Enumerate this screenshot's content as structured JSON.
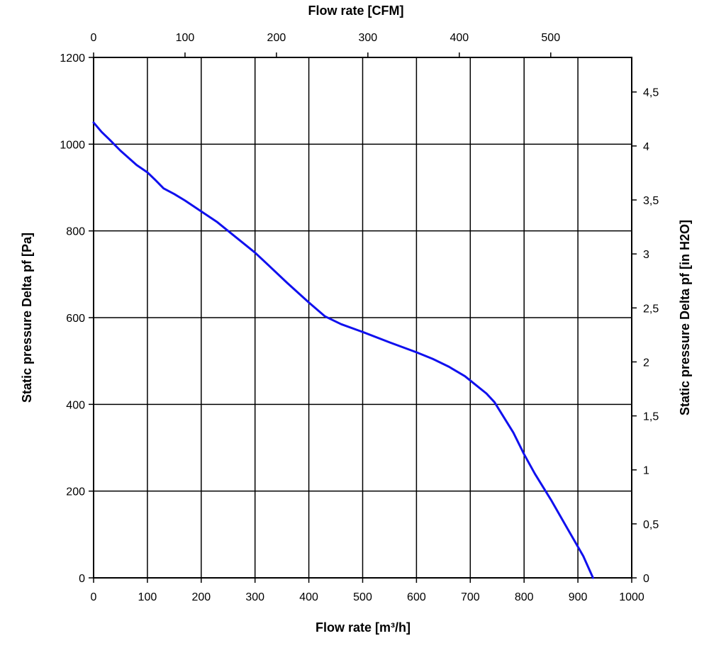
{
  "chart_data": {
    "type": "line",
    "x_bottom": {
      "label": "Flow rate [m³/h]",
      "range": [
        0,
        1000
      ],
      "ticks": [
        0,
        100,
        200,
        300,
        400,
        500,
        600,
        700,
        800,
        900,
        1000
      ]
    },
    "x_top": {
      "label": "Flow rate [CFM]",
      "range": [
        0,
        588.58
      ],
      "ticks": [
        0,
        100,
        200,
        300,
        400,
        500
      ],
      "tick_labels": [
        "0",
        "100",
        "200",
        "300",
        "400",
        "500"
      ]
    },
    "y_left": {
      "label": "Static pressure Delta pf [Pa]",
      "range": [
        0,
        1200
      ],
      "ticks": [
        0,
        200,
        400,
        600,
        800,
        1000,
        1200
      ]
    },
    "y_right": {
      "label": "Static pressure Delta pf [in H2O]",
      "range": [
        0,
        4.82
      ],
      "ticks": [
        0,
        0.5,
        1,
        1.5,
        2,
        2.5,
        3,
        3.5,
        4,
        4.5
      ],
      "tick_labels": [
        "0",
        "0,5",
        "1",
        "1,5",
        "2",
        "2,5",
        "3",
        "3,5",
        "4",
        "4,5"
      ]
    },
    "grid": true,
    "grid_x": [
      100,
      200,
      300,
      400,
      500,
      600,
      700,
      800,
      900
    ],
    "grid_y": [
      200,
      400,
      600,
      800,
      1000
    ],
    "series": [
      {
        "color": "#1010ee",
        "x": [
          0,
          15,
          30,
          50,
          80,
          100,
          115,
          130,
          150,
          170,
          200,
          230,
          260,
          300,
          330,
          360,
          400,
          430,
          460,
          500,
          550,
          600,
          630,
          660,
          690,
          710,
          730,
          745,
          760,
          780,
          800,
          820,
          850,
          880,
          910,
          928
        ],
        "y": [
          1050,
          1028,
          1010,
          985,
          952,
          935,
          917,
          898,
          885,
          870,
          845,
          820,
          790,
          750,
          715,
          680,
          635,
          603,
          585,
          567,
          543,
          520,
          505,
          487,
          465,
          445,
          425,
          405,
          375,
          335,
          285,
          240,
          180,
          115,
          50,
          0
        ]
      }
    ]
  }
}
